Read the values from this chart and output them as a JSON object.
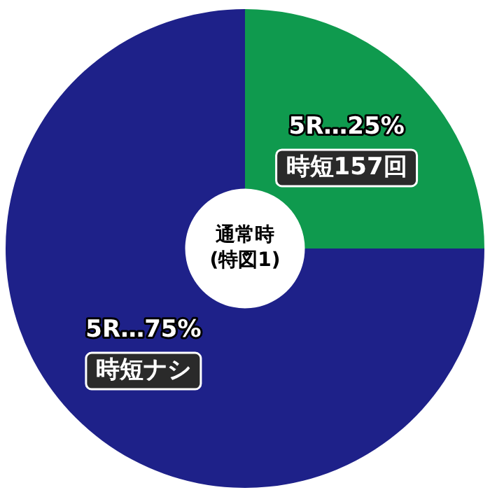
{
  "chart_data": {
    "type": "donut",
    "title": "通常時\n(特図1)",
    "categories": [
      "時短157回",
      "時短ナシ"
    ],
    "values": [
      25,
      75
    ],
    "colors": [
      "#0f9a4e",
      "#1e2189"
    ],
    "value_labels": [
      "5R…25%",
      "5R…75%"
    ],
    "legend": false
  }
}
